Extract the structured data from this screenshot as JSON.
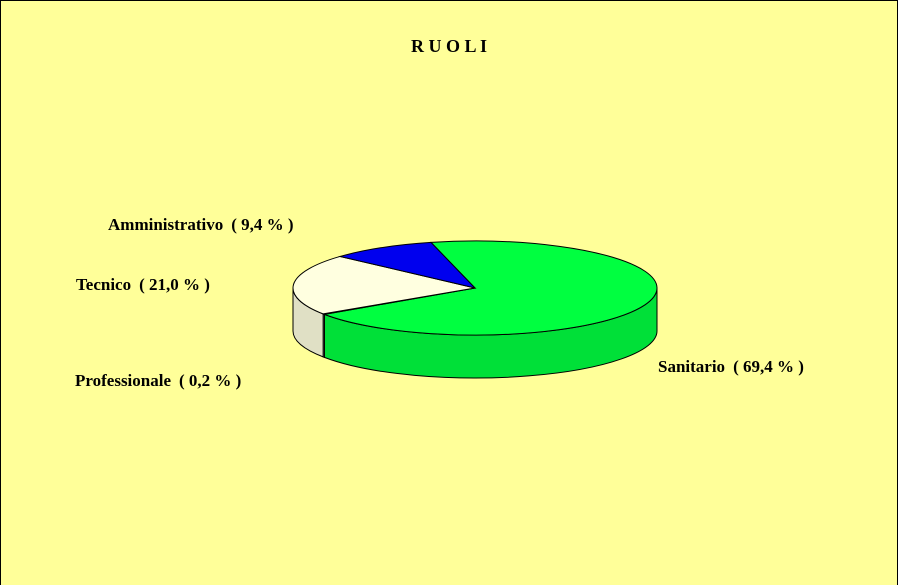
{
  "chart_data": {
    "type": "pie3d",
    "title": "R U O L I",
    "categories": [
      "Sanitario",
      "Professionale",
      "Tecnico",
      "Amministrativo"
    ],
    "values": [
      69.4,
      0.2,
      21.0,
      9.4
    ],
    "value_labels": [
      "( 69,4 % )",
      "( 0,2 % )",
      "( 21,0 % )",
      "( 9,4 % )"
    ],
    "colors": [
      "#00ff40",
      "#c0c0c0",
      "#ffffe0",
      "#0000ee"
    ]
  }
}
